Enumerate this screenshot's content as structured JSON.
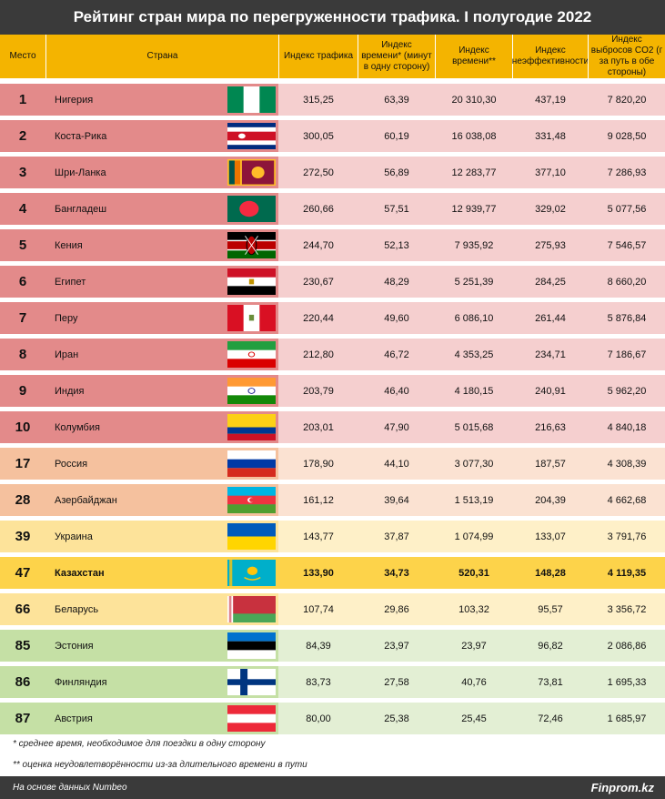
{
  "title": "Рейтинг стран мира по перегруженности трафика. I полугодие 2022",
  "columns": {
    "place": "Место",
    "country": "Страна",
    "traffic": "Индекс трафика",
    "time": "Индекс времени* (минут в одну сторону)",
    "time2": "Индекс времени**",
    "inefficiency": "Индекс неэффективности",
    "co2": "Индекс выбросов CO2 (г за путь в обе стороны)"
  },
  "colors": {
    "top10_left": "#e38a8a",
    "top10_right": "#f5cfcf",
    "mid_left": "#f5c19e",
    "mid_right": "#fbe2d2",
    "yellow_left": "#fde39a",
    "yellow_right": "#fef0c8",
    "green_left": "#c5e0a5",
    "green_right": "#e3efd4",
    "kz_bg": "#fdd34a"
  },
  "chart_data": {
    "type": "table",
    "title": "Рейтинг стран мира по перегруженности трафика. I полугодие 2022",
    "rows": [
      {
        "rank": "1",
        "country": "Нигерия",
        "flag": "nigeria-flag-icon",
        "traffic": "315,25",
        "time": "63,39",
        "time2": "20 310,30",
        "inefficiency": "437,19",
        "co2": "7 820,20",
        "group": "top10"
      },
      {
        "rank": "2",
        "country": "Коста-Рика",
        "flag": "costa-rica-flag-icon",
        "traffic": "300,05",
        "time": "60,19",
        "time2": "16 038,08",
        "inefficiency": "331,48",
        "co2": "9 028,50",
        "group": "top10"
      },
      {
        "rank": "3",
        "country": "Шри-Ланка",
        "flag": "sri-lanka-flag-icon",
        "traffic": "272,50",
        "time": "56,89",
        "time2": "12 283,77",
        "inefficiency": "377,10",
        "co2": "7 286,93",
        "group": "top10"
      },
      {
        "rank": "4",
        "country": "Бангладеш",
        "flag": "bangladesh-flag-icon",
        "traffic": "260,66",
        "time": "57,51",
        "time2": "12 939,77",
        "inefficiency": "329,02",
        "co2": "5 077,56",
        "group": "top10"
      },
      {
        "rank": "5",
        "country": "Кения",
        "flag": "kenya-flag-icon",
        "traffic": "244,70",
        "time": "52,13",
        "time2": "7 935,92",
        "inefficiency": "275,93",
        "co2": "7 546,57",
        "group": "top10"
      },
      {
        "rank": "6",
        "country": "Египет",
        "flag": "egypt-flag-icon",
        "traffic": "230,67",
        "time": "48,29",
        "time2": "5 251,39",
        "inefficiency": "284,25",
        "co2": "8 660,20",
        "group": "top10"
      },
      {
        "rank": "7",
        "country": "Перу",
        "flag": "peru-flag-icon",
        "traffic": "220,44",
        "time": "49,60",
        "time2": "6 086,10",
        "inefficiency": "261,44",
        "co2": "5 876,84",
        "group": "top10"
      },
      {
        "rank": "8",
        "country": "Иран",
        "flag": "iran-flag-icon",
        "traffic": "212,80",
        "time": "46,72",
        "time2": "4 353,25",
        "inefficiency": "234,71",
        "co2": "7 186,67",
        "group": "top10"
      },
      {
        "rank": "9",
        "country": "Индия",
        "flag": "india-flag-icon",
        "traffic": "203,79",
        "time": "46,40",
        "time2": "4 180,15",
        "inefficiency": "240,91",
        "co2": "5 962,20",
        "group": "top10"
      },
      {
        "rank": "10",
        "country": "Колумбия",
        "flag": "colombia-flag-icon",
        "traffic": "203,01",
        "time": "47,90",
        "time2": "5 015,68",
        "inefficiency": "216,63",
        "co2": "4 840,18",
        "group": "top10"
      },
      {
        "rank": "17",
        "country": "Россия",
        "flag": "russia-flag-icon",
        "traffic": "178,90",
        "time": "44,10",
        "time2": "3 077,30",
        "inefficiency": "187,57",
        "co2": "4 308,39",
        "group": "mid"
      },
      {
        "rank": "28",
        "country": "Азербайджан",
        "flag": "azerbaijan-flag-icon",
        "traffic": "161,12",
        "time": "39,64",
        "time2": "1 513,19",
        "inefficiency": "204,39",
        "co2": "4 662,68",
        "group": "mid"
      },
      {
        "rank": "39",
        "country": "Украина",
        "flag": "ukraine-flag-icon",
        "traffic": "143,77",
        "time": "37,87",
        "time2": "1 074,99",
        "inefficiency": "133,07",
        "co2": "3 791,76",
        "group": "yellow"
      },
      {
        "rank": "47",
        "country": "Казахстан",
        "flag": "kazakhstan-flag-icon",
        "traffic": "133,90",
        "time": "34,73",
        "time2": "520,31",
        "inefficiency": "148,28",
        "co2": "4 119,35",
        "group": "kz"
      },
      {
        "rank": "66",
        "country": "Беларусь",
        "flag": "belarus-flag-icon",
        "traffic": "107,74",
        "time": "29,86",
        "time2": "103,32",
        "inefficiency": "95,57",
        "co2": "3 356,72",
        "group": "yellow"
      },
      {
        "rank": "85",
        "country": "Эстония",
        "flag": "estonia-flag-icon",
        "traffic": "84,39",
        "time": "23,97",
        "time2": "23,97",
        "inefficiency": "96,82",
        "co2": "2 086,86",
        "group": "green"
      },
      {
        "rank": "86",
        "country": "Финляндия",
        "flag": "finland-flag-icon",
        "traffic": "83,73",
        "time": "27,58",
        "time2": "40,76",
        "inefficiency": "73,81",
        "co2": "1 695,33",
        "group": "green"
      },
      {
        "rank": "87",
        "country": "Австрия",
        "flag": "austria-flag-icon",
        "traffic": "80,00",
        "time": "25,38",
        "time2": "25,45",
        "inefficiency": "72,46",
        "co2": "1 685,97",
        "group": "green"
      }
    ]
  },
  "footnotes": {
    "note1": "* среднее время, необходимое для поездки в одну сторону",
    "note2": "** оценка неудовлетворённости из-за длительного времени в пути"
  },
  "footer": {
    "source": "На основе данных Numbeo",
    "brand": "Finprom.kz"
  }
}
